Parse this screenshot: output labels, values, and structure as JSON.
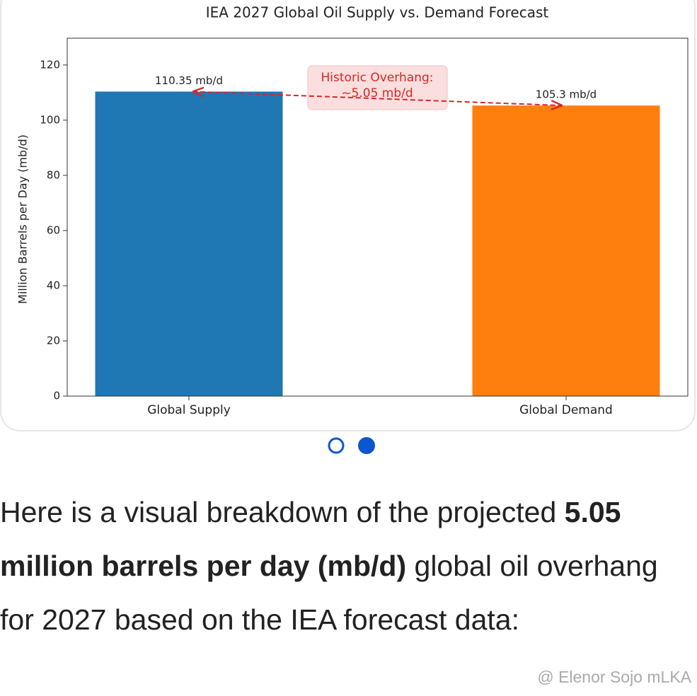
{
  "chart_data": {
    "type": "bar",
    "title": "IEA 2027 Global Oil Supply vs. Demand Forecast",
    "ylabel": "Million Barrels per Day (mb/d)",
    "categories": [
      "Global Supply",
      "Global Demand"
    ],
    "values": [
      110.35,
      105.3
    ],
    "value_labels": [
      "110.35 mb/d",
      "105.3 mb/d"
    ],
    "colors": [
      "#1f77b4",
      "#ff7f0e"
    ],
    "ylim": [
      0,
      129.7
    ],
    "yticks": [
      0,
      20,
      40,
      60,
      80,
      100,
      120
    ],
    "annotation": [
      "Historic Overhang:",
      "~5.05 mb/d"
    ],
    "annotation_color": "#d62728"
  },
  "paragraph": [
    "Here is a visual breakdown of the projected ",
    "5.05 million barrels per day (mb/d)",
    " global oil overhang for 2027 based on the IEA forecast data:"
  ],
  "watermark": "@ Elenor Sojo mLKA"
}
